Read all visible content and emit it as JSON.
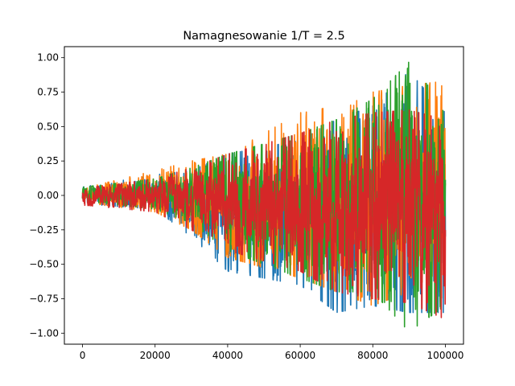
{
  "chart_data": {
    "type": "line",
    "title": "Namagnesowanie 1/T = 2.5",
    "xlabel": "",
    "ylabel": "",
    "xlim": [
      -5000,
      105000
    ],
    "ylim": [
      -1.08,
      1.08
    ],
    "x_ticks": [
      0,
      20000,
      40000,
      60000,
      80000,
      100000
    ],
    "x_tick_labels": [
      "0",
      "20000",
      "40000",
      "60000",
      "80000",
      "100000"
    ],
    "y_ticks": [
      1.0,
      0.75,
      0.5,
      0.25,
      0.0,
      -0.25,
      -0.5,
      -0.75,
      -1.0
    ],
    "y_tick_labels": [
      "1.00",
      "0.75",
      "0.50",
      "0.25",
      "0.00",
      "−0.25",
      "−0.50",
      "−0.75",
      "−1.00"
    ],
    "grid": false,
    "legend": "none",
    "x_range": [
      0,
      100000
    ],
    "series": [
      {
        "color": "#1f77b4",
        "envelope": [
          {
            "x": 0,
            "upper": 0.06,
            "lower": -0.06
          },
          {
            "x": 20000,
            "upper": 0.15,
            "lower": -0.1
          },
          {
            "x": 30000,
            "upper": 0.18,
            "lower": -0.3
          },
          {
            "x": 40000,
            "upper": 0.3,
            "lower": -0.55
          },
          {
            "x": 60000,
            "upper": 0.4,
            "lower": -0.65
          },
          {
            "x": 70000,
            "upper": 0.55,
            "lower": -0.85
          },
          {
            "x": 80000,
            "upper": 0.65,
            "lower": -0.8
          },
          {
            "x": 90000,
            "upper": 0.9,
            "lower": -0.85
          },
          {
            "x": 100000,
            "upper": 0.6,
            "lower": -0.85
          }
        ]
      },
      {
        "color": "#ff7f0e",
        "envelope": [
          {
            "x": 0,
            "upper": 0.05,
            "lower": -0.05
          },
          {
            "x": 20000,
            "upper": 0.18,
            "lower": -0.12
          },
          {
            "x": 30000,
            "upper": 0.25,
            "lower": -0.25
          },
          {
            "x": 40000,
            "upper": 0.3,
            "lower": -0.45
          },
          {
            "x": 60000,
            "upper": 0.6,
            "lower": -0.6
          },
          {
            "x": 70000,
            "upper": 0.65,
            "lower": -0.7
          },
          {
            "x": 80000,
            "upper": 0.75,
            "lower": -0.8
          },
          {
            "x": 90000,
            "upper": 0.8,
            "lower": -0.7
          },
          {
            "x": 100000,
            "upper": 0.83,
            "lower": -0.75
          }
        ]
      },
      {
        "color": "#2ca02c",
        "envelope": [
          {
            "x": 0,
            "upper": 0.06,
            "lower": -0.04
          },
          {
            "x": 20000,
            "upper": 0.12,
            "lower": -0.1
          },
          {
            "x": 30000,
            "upper": 0.2,
            "lower": -0.2
          },
          {
            "x": 40000,
            "upper": 0.3,
            "lower": -0.4
          },
          {
            "x": 60000,
            "upper": 0.45,
            "lower": -0.6
          },
          {
            "x": 70000,
            "upper": 0.55,
            "lower": -0.7
          },
          {
            "x": 80000,
            "upper": 0.7,
            "lower": -0.7
          },
          {
            "x": 90000,
            "upper": 0.97,
            "lower": -0.99
          },
          {
            "x": 100000,
            "upper": 0.64,
            "lower": -0.8
          }
        ]
      },
      {
        "color": "#d62728",
        "envelope": [
          {
            "x": 0,
            "upper": 0.05,
            "lower": -0.07
          },
          {
            "x": 20000,
            "upper": 0.12,
            "lower": -0.12
          },
          {
            "x": 30000,
            "upper": 0.2,
            "lower": -0.25
          },
          {
            "x": 40000,
            "upper": 0.3,
            "lower": -0.4
          },
          {
            "x": 60000,
            "upper": 0.45,
            "lower": -0.55
          },
          {
            "x": 70000,
            "upper": 0.55,
            "lower": -0.7
          },
          {
            "x": 80000,
            "upper": 0.6,
            "lower": -0.75
          },
          {
            "x": 90000,
            "upper": 0.62,
            "lower": -0.78
          },
          {
            "x": 100000,
            "upper": 0.55,
            "lower": -0.9
          }
        ]
      }
    ]
  }
}
